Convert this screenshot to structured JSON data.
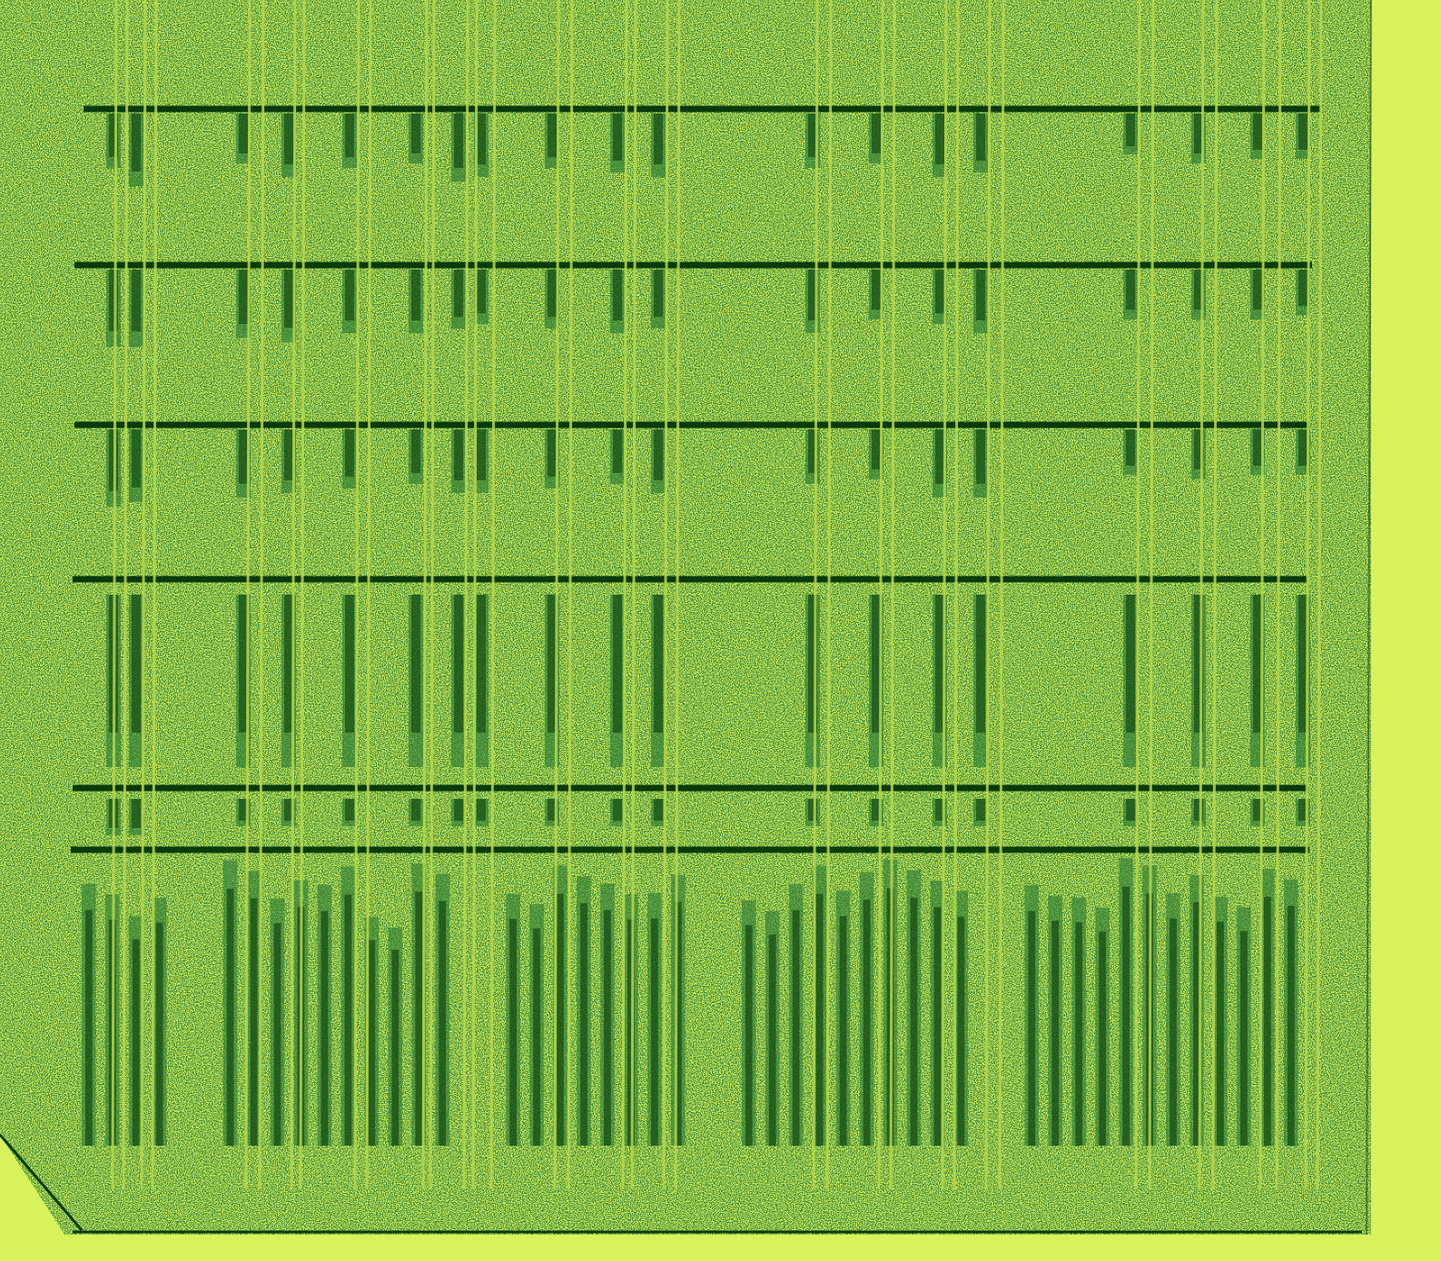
{
  "image": {
    "description_color_paper": "#d8f25c",
    "description_color_ink": "#0a3a0a",
    "description_color_stripe": "#b8d84a"
  },
  "gel": {
    "lane_count": 26,
    "band_rows": 5,
    "bottom_zone_lane_heights": [
      0.86,
      0.82,
      0.0,
      0.96,
      0.9,
      0.92,
      0.78,
      0.94,
      0.0,
      0.88,
      0.95,
      0.86,
      0.9,
      0.0,
      0.82,
      0.95,
      0.9,
      0.98,
      0.88,
      0.0,
      0.91,
      0.84,
      0.96,
      0.9,
      0.86,
      0.93
    ]
  }
}
